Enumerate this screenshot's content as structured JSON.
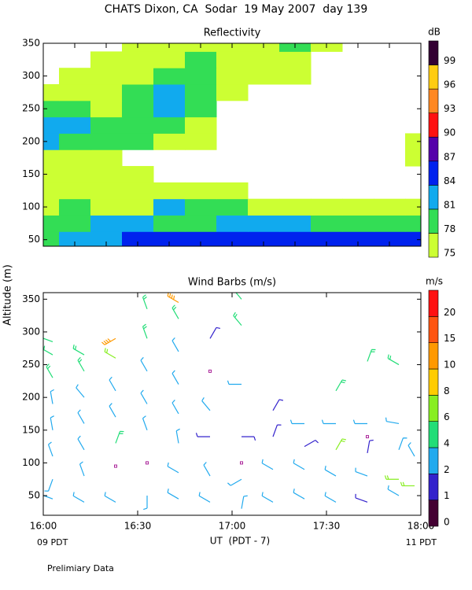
{
  "title": "CHATS Dixon, CA  Sodar  19 May 2007  day 139",
  "ylabel": "Altitude (m)",
  "footnote": "Prelimiary Data",
  "chart_data": [
    {
      "type": "contour",
      "title": "Reflectivity",
      "unit": "dB",
      "x": [
        0,
        10,
        20,
        30,
        40,
        50,
        60,
        70,
        80,
        90,
        100,
        110,
        120
      ],
      "y": [
        50,
        75,
        100,
        125,
        150,
        175,
        200,
        225,
        250,
        275,
        300,
        325,
        350
      ],
      "z": [
        [
          80,
          82,
          82,
          84,
          85,
          85,
          85,
          84,
          84,
          85,
          84,
          84,
          85
        ],
        [
          79,
          79,
          82,
          82,
          80,
          80,
          82,
          82,
          82,
          80,
          80,
          79,
          80
        ],
        [
          77,
          79,
          77,
          77,
          82,
          80,
          79,
          77,
          77,
          76,
          76,
          76,
          76
        ],
        [
          76,
          76,
          76,
          76,
          77,
          76,
          76,
          null,
          null,
          null,
          null,
          null,
          null
        ],
        [
          76,
          76,
          76,
          76,
          null,
          null,
          null,
          null,
          null,
          null,
          null,
          null,
          null
        ],
        [
          76,
          77,
          77,
          null,
          null,
          null,
          null,
          null,
          null,
          null,
          null,
          null,
          76
        ],
        [
          82,
          79,
          78,
          78,
          77,
          77,
          null,
          null,
          null,
          null,
          null,
          null,
          76
        ],
        [
          82,
          82,
          78,
          78,
          78,
          77,
          null,
          null,
          null,
          null,
          null,
          null,
          null
        ],
        [
          79,
          79,
          77,
          79,
          82,
          78,
          null,
          null,
          null,
          null,
          null,
          null,
          null
        ],
        [
          76,
          77,
          77,
          79,
          82,
          79,
          77,
          null,
          null,
          null,
          null,
          null,
          null
        ],
        [
          null,
          76,
          77,
          77,
          79,
          79,
          77,
          76,
          76,
          null,
          null,
          null,
          null
        ],
        [
          null,
          null,
          76,
          77,
          77,
          79,
          77,
          76,
          76,
          null,
          null,
          null,
          null
        ],
        [
          null,
          null,
          null,
          76,
          77,
          77,
          76,
          76,
          79,
          76,
          null,
          null,
          null
        ]
      ],
      "levels": [
        75,
        78,
        81,
        84,
        87,
        90,
        93,
        96,
        99
      ],
      "colors": [
        "#ccff33",
        "#33dd55",
        "#11aaee",
        "#0022ee",
        "#5500aa",
        "#ff1111",
        "#ff8822",
        "#ffcc11",
        "#330033"
      ],
      "xlim": [
        0,
        120
      ],
      "xticks": [
        0,
        10,
        20,
        30,
        40,
        50,
        60,
        70,
        80,
        90,
        100,
        110,
        120
      ],
      "ylim": [
        40,
        350
      ],
      "yticks": [
        50,
        100,
        150,
        200,
        250,
        300,
        350
      ]
    },
    {
      "type": "barbs",
      "title": "Wind Barbs (m/s)",
      "unit": "m/s",
      "xlabel": "UT  (PDT - 7)",
      "x_start_label": "09 PDT",
      "x_end_label": "11 PDT",
      "barbs": [
        [
          3,
          45,
          3,
          290
        ],
        [
          3,
          75,
          3,
          200
        ],
        [
          3,
          110,
          2.5,
          340
        ],
        [
          3,
          150,
          2.5,
          350
        ],
        [
          3,
          190,
          3,
          350
        ],
        [
          3,
          230,
          4,
          330
        ],
        [
          3,
          265,
          4,
          300
        ],
        [
          3,
          285,
          5,
          290
        ],
        [
          13,
          40,
          3,
          300
        ],
        [
          13,
          80,
          2.5,
          340
        ],
        [
          13,
          120,
          2.5,
          330
        ],
        [
          13,
          160,
          3,
          330
        ],
        [
          13,
          200,
          2.5,
          320
        ],
        [
          13,
          240,
          4,
          330
        ],
        [
          13,
          265,
          5,
          300
        ],
        [
          23,
          40,
          3,
          300
        ],
        [
          23,
          95,
          0,
          0
        ],
        [
          23,
          130,
          5,
          20
        ],
        [
          23,
          170,
          3,
          330
        ],
        [
          23,
          210,
          2.5,
          330
        ],
        [
          23,
          260,
          6,
          300
        ],
        [
          23,
          290,
          10,
          240
        ],
        [
          33,
          50,
          2.5,
          180
        ],
        [
          33,
          100,
          0,
          0
        ],
        [
          33,
          150,
          2.5,
          340
        ],
        [
          33,
          190,
          2.5,
          330
        ],
        [
          33,
          240,
          3,
          330
        ],
        [
          33,
          290,
          4,
          340
        ],
        [
          33,
          335,
          5,
          340
        ],
        [
          43,
          45,
          3,
          300
        ],
        [
          43,
          85,
          2.5,
          300
        ],
        [
          43,
          130,
          2,
          350
        ],
        [
          43,
          175,
          3,
          330
        ],
        [
          43,
          220,
          3,
          330
        ],
        [
          43,
          270,
          3,
          330
        ],
        [
          43,
          320,
          5,
          330
        ],
        [
          43,
          345,
          12,
          300
        ],
        [
          53,
          40,
          3,
          300
        ],
        [
          53,
          80,
          2,
          330
        ],
        [
          53,
          140,
          1.5,
          270
        ],
        [
          53,
          180,
          2.5,
          320
        ],
        [
          53,
          240,
          0,
          0
        ],
        [
          53,
          290,
          1.5,
          30
        ],
        [
          63,
          30,
          3,
          10
        ],
        [
          63,
          75,
          2.5,
          240
        ],
        [
          63,
          100,
          0,
          0
        ],
        [
          63,
          140,
          1.5,
          90
        ],
        [
          63,
          220,
          2.5,
          270
        ],
        [
          63,
          310,
          5,
          320
        ],
        [
          63,
          350,
          4,
          320
        ],
        [
          73,
          40,
          2.5,
          300
        ],
        [
          73,
          90,
          2.5,
          300
        ],
        [
          73,
          140,
          1.5,
          20
        ],
        [
          73,
          180,
          1.5,
          30
        ],
        [
          83,
          45,
          2.5,
          300
        ],
        [
          83,
          90,
          2.5,
          300
        ],
        [
          83,
          125,
          1.5,
          60
        ],
        [
          83,
          160,
          2.5,
          270
        ],
        [
          93,
          40,
          2.5,
          300
        ],
        [
          93,
          80,
          3,
          300
        ],
        [
          93,
          120,
          6,
          30
        ],
        [
          93,
          160,
          2.5,
          270
        ],
        [
          93,
          210,
          5,
          30
        ],
        [
          103,
          40,
          1.5,
          290
        ],
        [
          103,
          80,
          3,
          290
        ],
        [
          103,
          115,
          1.5,
          10
        ],
        [
          103,
          140,
          0,
          0
        ],
        [
          103,
          160,
          2.5,
          270
        ],
        [
          103,
          255,
          5,
          20
        ],
        [
          113,
          50,
          2.5,
          300
        ],
        [
          113,
          75,
          6,
          270
        ],
        [
          113,
          120,
          3,
          20
        ],
        [
          113,
          160,
          2,
          280
        ],
        [
          113,
          250,
          5,
          300
        ],
        [
          118,
          65,
          6,
          270
        ],
        [
          118,
          110,
          3,
          330
        ]
      ],
      "levels": [
        0,
        1,
        2,
        4,
        6,
        8,
        10,
        15,
        20
      ],
      "colors": [
        "#440033",
        "#3322cc",
        "#22aaee",
        "#22dd77",
        "#88ee22",
        "#ffcc00",
        "#ff9900",
        "#ff5511",
        "#ff1111"
      ],
      "xlim": [
        0,
        120
      ],
      "xticks": [
        {
          "value": 0,
          "label": "16:00"
        },
        {
          "value": 30,
          "label": "16:30"
        },
        {
          "value": 60,
          "label": "17:00"
        },
        {
          "value": 90,
          "label": "17:30"
        },
        {
          "value": 120,
          "label": "18:00"
        }
      ],
      "ylim": [
        20,
        360
      ],
      "yticks": [
        50,
        100,
        150,
        200,
        250,
        300,
        350
      ]
    }
  ]
}
